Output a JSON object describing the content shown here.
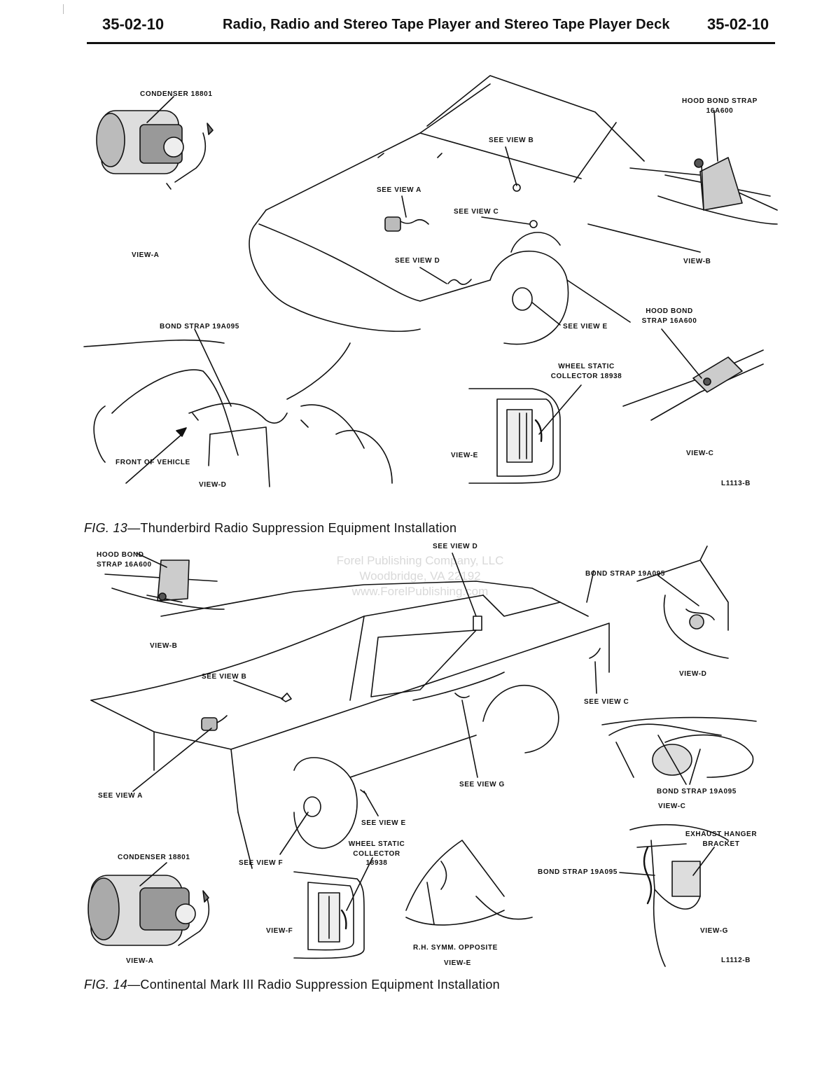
{
  "header": {
    "page_left": "35-02-10",
    "title": "Radio, Radio and Stereo Tape Player and Stereo Tape Player Deck",
    "page_right": "35-02-10"
  },
  "fig13": {
    "caption_num": "FIG. 13",
    "caption_text": "—Thunderbird Radio Suppression Equipment Installation",
    "code": "L1113-B",
    "labels": {
      "condenser": "CONDENSER 18801",
      "hood_bond_strap_top": "HOOD BOND STRAP 16A600",
      "see_view_b": "SEE VIEW B",
      "see_view_a": "SEE VIEW A",
      "see_view_c": "SEE VIEW C",
      "see_view_d": "SEE VIEW D",
      "see_view_e": "SEE VIEW E",
      "view_a": "VIEW-A",
      "view_b": "VIEW-B",
      "hood_bond_strap_c": "HOOD BOND STRAP 16A600",
      "bond_strap": "BOND STRAP 19A095",
      "wheel_collector": "WHEEL STATIC COLLECTOR 18938",
      "front_of_vehicle": "FRONT OF VEHICLE",
      "view_d": "VIEW-D",
      "view_e": "VIEW-E",
      "view_c": "VIEW-C"
    }
  },
  "fig14": {
    "caption_num": "FIG. 14",
    "caption_text": "—Continental Mark III Radio Suppression Equipment Installation",
    "code": "L1112-B",
    "labels": {
      "hood_bond_strap": "HOOD BOND STRAP 16A600",
      "see_view_d": "SEE VIEW D",
      "bond_strap_d": "BOND STRAP 19A095",
      "view_b": "VIEW-B",
      "view_d": "VIEW-D",
      "see_view_b": "SEE VIEW B",
      "see_view_c": "SEE VIEW C",
      "see_view_a": "SEE VIEW A",
      "see_view_g": "SEE VIEW G",
      "bond_strap_c": "BOND STRAP 19A095",
      "view_c": "VIEW-C",
      "see_view_e": "SEE VIEW E",
      "condenser": "CONDENSER 18801",
      "see_view_f": "SEE VIEW F",
      "wheel_collector": "WHEEL STATIC COLLECTOR 18938",
      "exhaust_bracket": "EXHAUST HANGER BRACKET",
      "bond_strap_g": "BOND STRAP 19A095",
      "view_f": "VIEW-F",
      "view_g": "VIEW-G",
      "rh_symm": "R.H. SYMM. OPPOSITE",
      "view_e": "VIEW-E",
      "view_a": "VIEW-A"
    }
  },
  "watermark": {
    "line1": "Forel Publishing Company, LLC",
    "line2": "Woodbridge, VA 22192",
    "line3": "www.ForelPublishing.com"
  }
}
